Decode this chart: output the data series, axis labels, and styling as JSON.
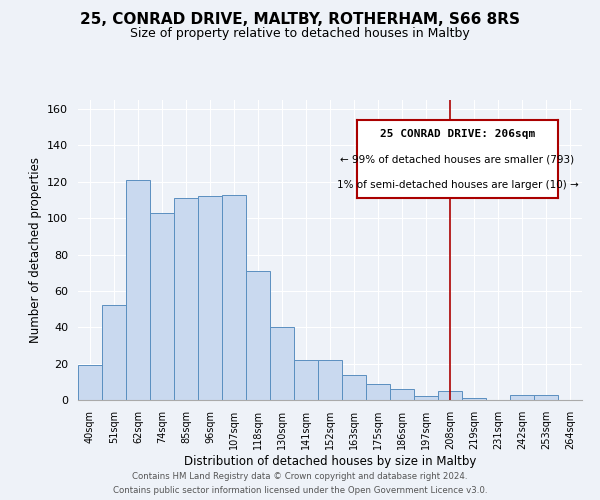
{
  "title": "25, CONRAD DRIVE, MALTBY, ROTHERHAM, S66 8RS",
  "subtitle": "Size of property relative to detached houses in Maltby",
  "xlabel": "Distribution of detached houses by size in Maltby",
  "ylabel": "Number of detached properties",
  "bar_labels": [
    "40sqm",
    "51sqm",
    "62sqm",
    "74sqm",
    "85sqm",
    "96sqm",
    "107sqm",
    "118sqm",
    "130sqm",
    "141sqm",
    "152sqm",
    "163sqm",
    "175sqm",
    "186sqm",
    "197sqm",
    "208sqm",
    "219sqm",
    "231sqm",
    "242sqm",
    "253sqm",
    "264sqm"
  ],
  "bar_heights": [
    19,
    52,
    121,
    103,
    111,
    112,
    113,
    71,
    40,
    22,
    22,
    14,
    9,
    6,
    2,
    5,
    1,
    0,
    3,
    3,
    0
  ],
  "bar_color": "#c9d9ef",
  "bar_edge_color": "#5a8fc0",
  "ylim": [
    0,
    165
  ],
  "vline_index": 15,
  "vline_color": "#aa0000",
  "annotation_title": "25 CONRAD DRIVE: 206sqm",
  "annotation_line1": "← 99% of detached houses are smaller (793)",
  "annotation_line2": "1% of semi-detached houses are larger (10) →",
  "annotation_box_edge": "#aa0000",
  "footer1": "Contains HM Land Registry data © Crown copyright and database right 2024.",
  "footer2": "Contains public sector information licensed under the Open Government Licence v3.0.",
  "title_fontsize": 11,
  "subtitle_fontsize": 9,
  "background_color": "#eef2f8"
}
